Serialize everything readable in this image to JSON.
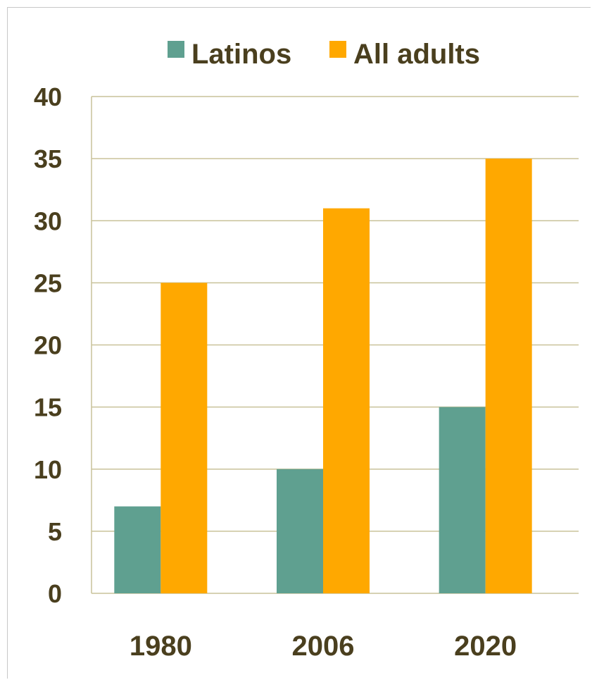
{
  "chart_data": {
    "type": "bar",
    "categories": [
      "1980",
      "2006",
      "2020"
    ],
    "series": [
      {
        "name": "Latinos",
        "values": [
          7,
          10,
          15
        ],
        "color": "#5fa090"
      },
      {
        "name": "All adults",
        "values": [
          25,
          31,
          35
        ],
        "color": "#ffa800"
      }
    ],
    "ylim": [
      0,
      40
    ],
    "yticks": [
      "0",
      "5",
      "10",
      "15",
      "20",
      "25",
      "30",
      "35",
      "40"
    ],
    "grid": true,
    "legend_position": "top",
    "colors": {
      "grid": "#c9c29a",
      "text": "#4a3f1e"
    }
  }
}
